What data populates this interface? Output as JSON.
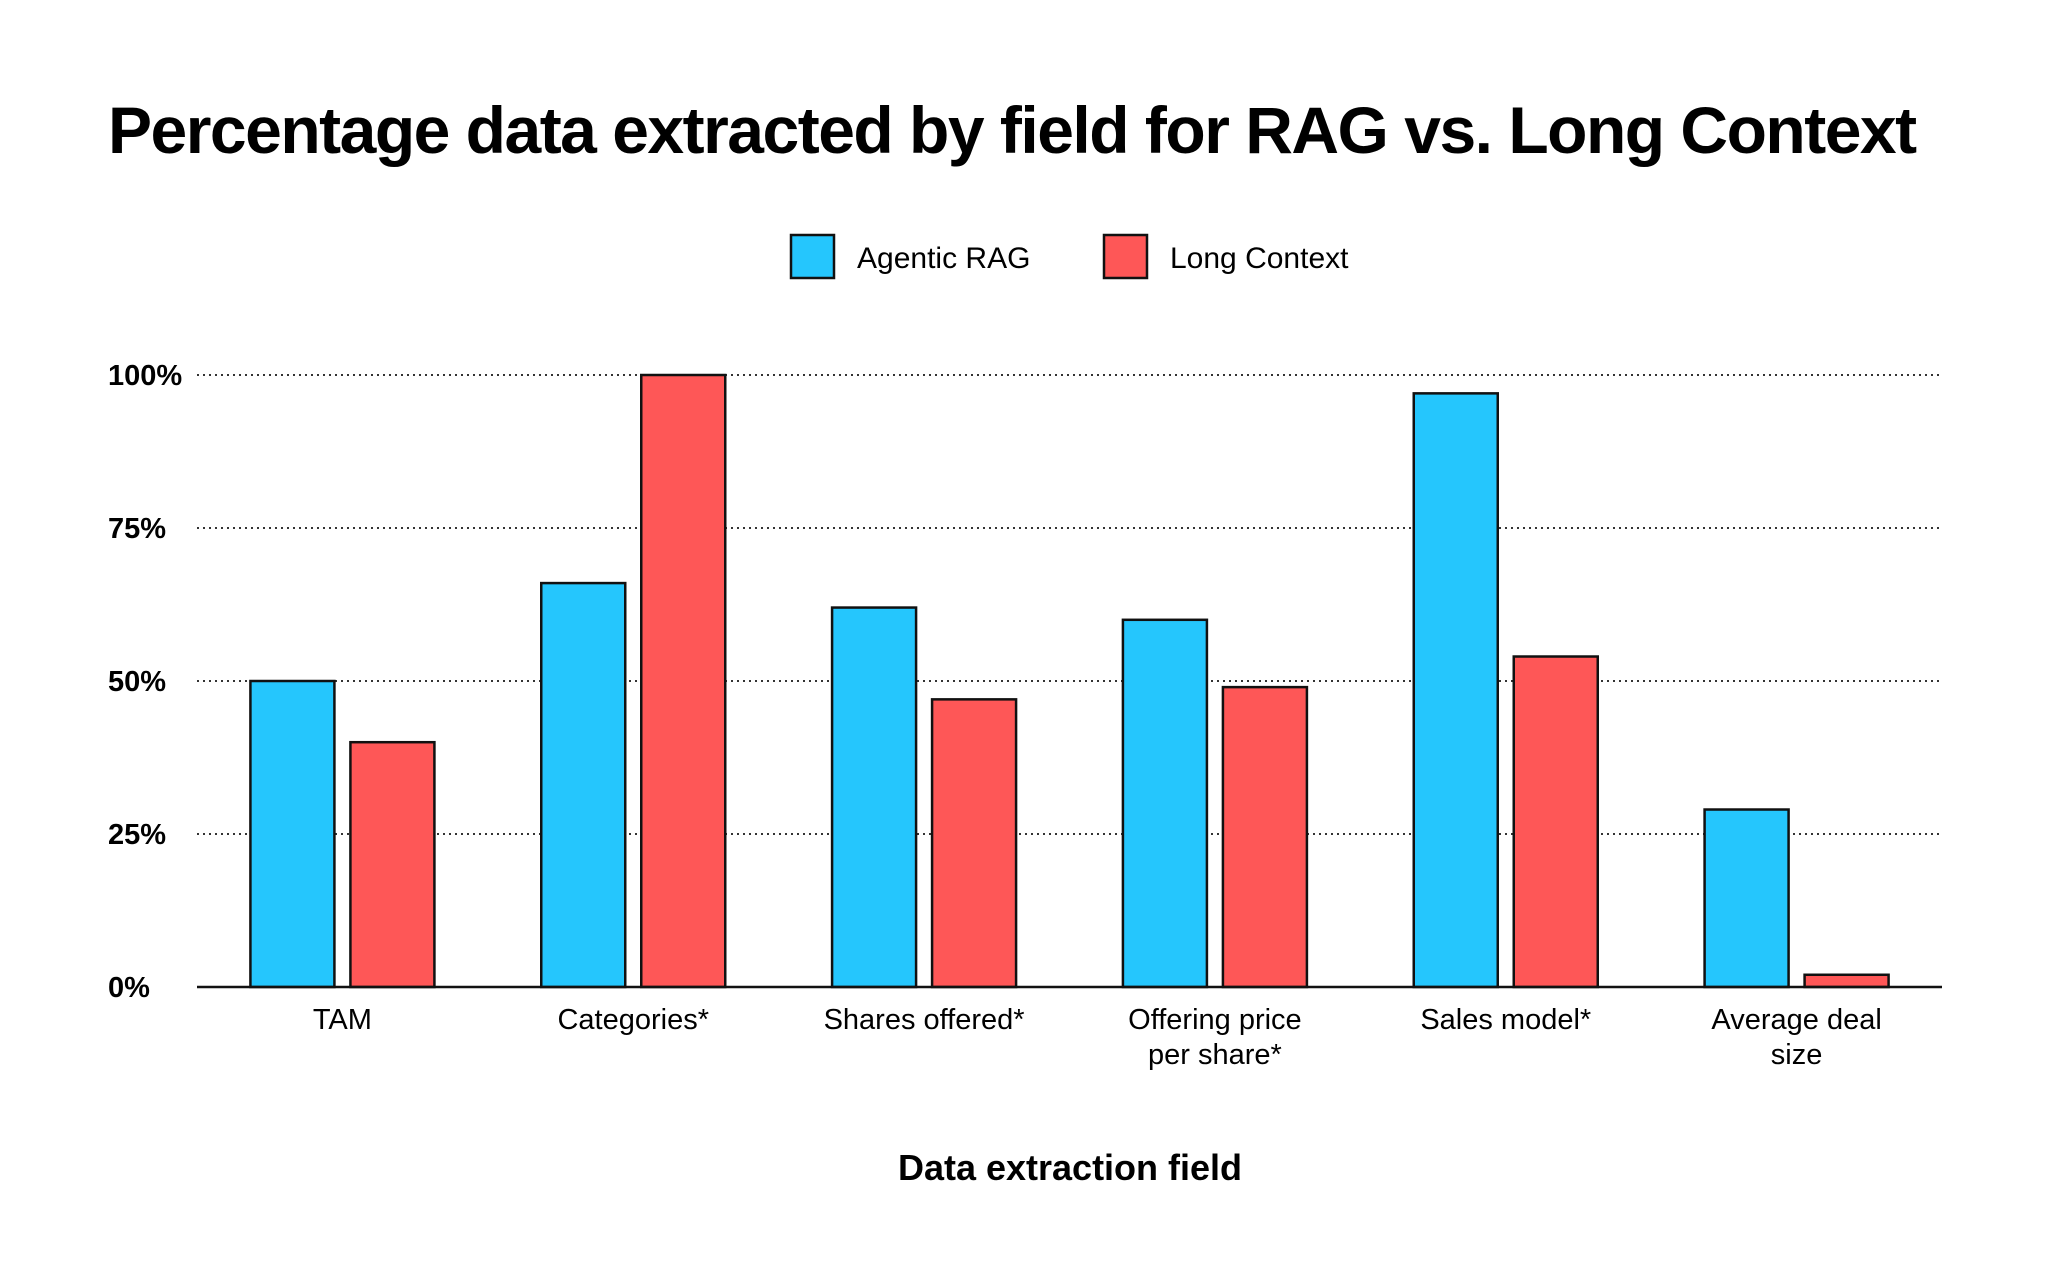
{
  "chart_data": {
    "type": "bar",
    "title": "Percentage data extracted by field for RAG vs. Long Context",
    "xlabel": "Data extraction field",
    "ylabel": "",
    "ylim": [
      0,
      100
    ],
    "yticks": [
      0,
      25,
      50,
      75,
      100
    ],
    "ytick_labels": [
      "0%",
      "25%",
      "50%",
      "75%",
      "100%"
    ],
    "grid": "horizontal dotted",
    "legend_position": "top-center",
    "categories": [
      [
        "TAM"
      ],
      [
        "Categories*"
      ],
      [
        "Shares offered*"
      ],
      [
        "Offering price",
        "per share*"
      ],
      [
        "Sales model*"
      ],
      [
        "Average deal",
        "size"
      ]
    ],
    "series": [
      {
        "name": "Agentic RAG",
        "color": "#25C6FD",
        "values": [
          50,
          66,
          62,
          60,
          97,
          29
        ]
      },
      {
        "name": "Long Context",
        "color": "#FE5757",
        "values": [
          40,
          100,
          47,
          49,
          54,
          2
        ]
      }
    ]
  }
}
